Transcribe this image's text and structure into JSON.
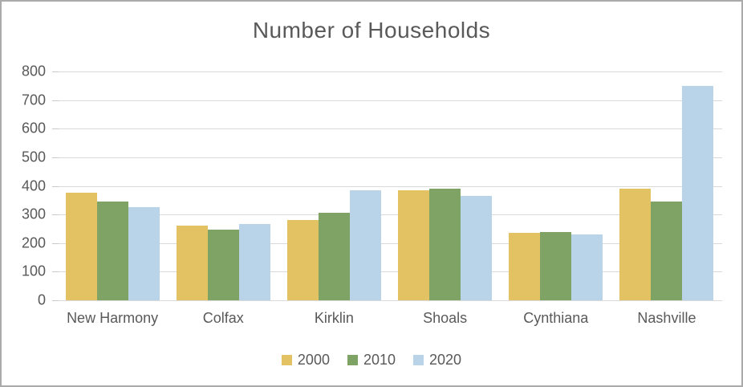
{
  "page": {
    "background_color": "#FFFFFF",
    "border_color": "#AAAAAA",
    "text_color": "#595959"
  },
  "chart_data": {
    "type": "bar",
    "title": "Number of Households",
    "xlabel": "",
    "ylabel": "",
    "categories": [
      "New Harmony",
      "Colfax",
      "Kirklin",
      "Shoals",
      "Cynthiana",
      "Nashville"
    ],
    "series": [
      {
        "name": "2000",
        "color": "#E2C263",
        "values": [
          375,
          260,
          280,
          385,
          235,
          390
        ]
      },
      {
        "name": "2010",
        "color": "#7FA364",
        "values": [
          345,
          248,
          305,
          390,
          238,
          345
        ]
      },
      {
        "name": "2020",
        "color": "#B9D3E8",
        "values": [
          325,
          267,
          385,
          365,
          230,
          750
        ]
      }
    ],
    "ylim": [
      0,
      800
    ],
    "ytick_interval": 100,
    "yticks": [
      0,
      100,
      200,
      300,
      400,
      500,
      600,
      700,
      800
    ],
    "grid": true,
    "gridline_color": "#D9D9D9",
    "legend_position": "bottom"
  }
}
